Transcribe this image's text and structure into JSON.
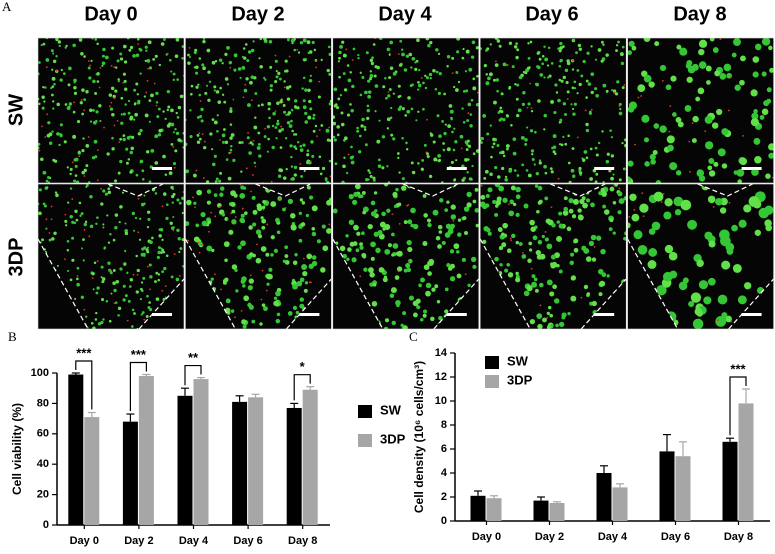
{
  "panel_a": {
    "label": "A",
    "columns": [
      "Day 0",
      "Day 2",
      "Day 4",
      "Day 6",
      "Day 8"
    ],
    "rows": [
      "SW",
      "3DP"
    ]
  },
  "chart_data": [
    {
      "type": "bar",
      "panel": "B",
      "y_label": "Cell viability (%)",
      "categories": [
        "Day 0",
        "Day 2",
        "Day 4",
        "Day 6",
        "Day 8"
      ],
      "series": [
        {
          "name": "SW",
          "color": "#000000",
          "values": [
            99,
            68,
            85,
            81,
            77
          ],
          "errors": [
            1,
            5,
            5,
            4,
            3
          ]
        },
        {
          "name": "3DP",
          "color": "#a6a6a6",
          "values": [
            71,
            98,
            96,
            84,
            89
          ],
          "errors": [
            3,
            1,
            1,
            2,
            2
          ]
        }
      ],
      "significance": [
        "***",
        "***",
        "**",
        null,
        "*"
      ],
      "ylim": [
        0,
        100
      ],
      "yticks": [
        0,
        20,
        40,
        60,
        80,
        100
      ],
      "legend": "right"
    },
    {
      "type": "bar",
      "panel": "C",
      "y_label": "Cell density (10⁶ cells/cm³)",
      "categories": [
        "Day 0",
        "Day 2",
        "Day 4",
        "Day 6",
        "Day 8"
      ],
      "series": [
        {
          "name": "SW",
          "color": "#000000",
          "values": [
            2.1,
            1.7,
            4.0,
            5.8,
            6.6
          ],
          "errors": [
            0.4,
            0.3,
            0.6,
            1.4,
            0.3
          ]
        },
        {
          "name": "3DP",
          "color": "#a6a6a6",
          "values": [
            1.9,
            1.5,
            2.8,
            5.4,
            9.8
          ],
          "errors": [
            0.2,
            0.1,
            0.3,
            1.2,
            1.2
          ]
        }
      ],
      "significance": [
        null,
        null,
        null,
        null,
        "***"
      ],
      "ylim": [
        0,
        14
      ],
      "yticks": [
        0,
        2,
        4,
        6,
        8,
        10,
        12,
        14
      ],
      "legend": "upper left"
    }
  ]
}
